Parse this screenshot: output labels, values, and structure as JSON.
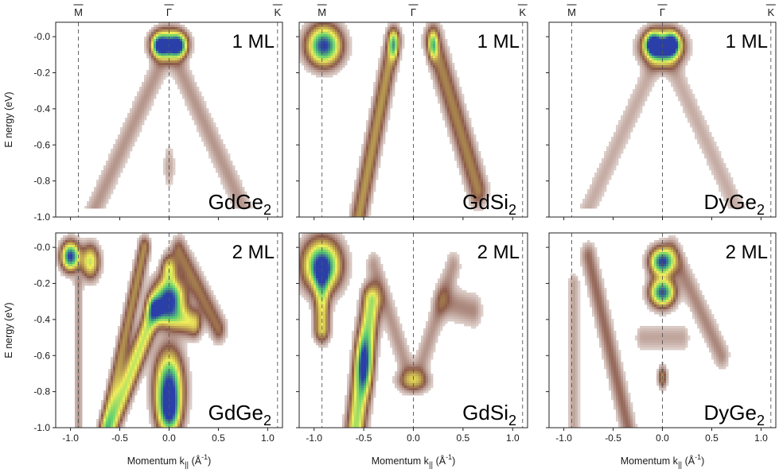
{
  "chart_data": {
    "type": "heatmap",
    "description_units": "ARPES intensity maps, energy (eV) vs momentum k|| (1/Angstrom)",
    "colormap": [
      "#ffffff",
      "#8b5a4a",
      "#f2ee5a",
      "#5ccf6e",
      "#2a3fa8"
    ],
    "xlim": [
      -1.15,
      1.15
    ],
    "ylim": [
      -1.0,
      0.08
    ],
    "xticks": [
      -1.0,
      -0.5,
      0.0,
      0.5,
      1.0
    ],
    "xtick_labels": [
      "-1.0",
      "-0.5",
      "0.0",
      "0.5",
      "1.0"
    ],
    "yticks": [
      0.0,
      -0.2,
      -0.4,
      -0.6,
      -0.8,
      -1.0
    ],
    "ytick_labels": [
      "-0.0",
      "-0.2",
      "-0.4",
      "-0.6",
      "-0.8",
      "-1.0"
    ],
    "ylabel": "E nergy  (eV)",
    "xlabel": "Momentum k",
    "xlabel_subscript": "||",
    "xlabel_unit": " (Å",
    "xlabel_unit_sup": "-1",
    "xlabel_unit_close": ")",
    "high_symmetry": [
      {
        "label": "M",
        "k": -0.92
      },
      {
        "label": "Γ",
        "k": 0.0
      },
      {
        "label": "K",
        "k": 1.1
      }
    ],
    "panels": [
      {
        "row": 0,
        "col": 0,
        "coverage": "1 ML",
        "material": "GdGe",
        "subscript": "2",
        "features": [
          {
            "kind": "cone",
            "apex_k": 0.0,
            "apex_e": -0.05,
            "slope": 1.2,
            "width": 0.07,
            "amp": 0.12,
            "e_min": -0.95
          },
          {
            "kind": "blob",
            "k": 0.0,
            "e": -0.04,
            "sk": 0.1,
            "se": 0.05,
            "amp": 0.9
          },
          {
            "kind": "blob",
            "k": -0.1,
            "e": -0.05,
            "sk": 0.05,
            "se": 0.04,
            "amp": 0.7
          },
          {
            "kind": "blob",
            "k": 0.1,
            "e": -0.05,
            "sk": 0.05,
            "se": 0.04,
            "amp": 0.7
          },
          {
            "kind": "blob",
            "k": 0.0,
            "e": -0.72,
            "sk": 0.04,
            "se": 0.08,
            "amp": 0.1
          }
        ]
      },
      {
        "row": 0,
        "col": 1,
        "coverage": "1 ML",
        "material": "GdSi",
        "subscript": "2",
        "features": [
          {
            "kind": "blob",
            "k": -0.9,
            "e": -0.05,
            "sk": 0.11,
            "se": 0.07,
            "amp": 1.0
          },
          {
            "kind": "band",
            "k0": -0.2,
            "e0": -0.02,
            "k1": -0.55,
            "e1": -1.0,
            "width": 0.05,
            "amp": 0.32
          },
          {
            "kind": "band",
            "k0": 0.2,
            "e0": -0.02,
            "k1": 0.65,
            "e1": -0.85,
            "width": 0.06,
            "amp": 0.28
          },
          {
            "kind": "blob",
            "k": -0.2,
            "e": -0.05,
            "sk": 0.03,
            "se": 0.05,
            "amp": 0.5
          },
          {
            "kind": "blob",
            "k": 0.2,
            "e": -0.05,
            "sk": 0.03,
            "se": 0.05,
            "amp": 0.5
          }
        ]
      },
      {
        "row": 0,
        "col": 2,
        "coverage": "1 ML",
        "material": "DyGe",
        "subscript": "2",
        "features": [
          {
            "kind": "cone",
            "apex_k": 0.0,
            "apex_e": -0.05,
            "slope": 1.2,
            "width": 0.07,
            "amp": 0.09,
            "e_min": -0.95
          },
          {
            "kind": "blob",
            "k": 0.0,
            "e": -0.06,
            "sk": 0.12,
            "se": 0.06,
            "amp": 1.0
          },
          {
            "kind": "blob",
            "k": -0.1,
            "e": -0.04,
            "sk": 0.05,
            "se": 0.04,
            "amp": 0.8
          },
          {
            "kind": "blob",
            "k": 0.1,
            "e": -0.04,
            "sk": 0.05,
            "se": 0.04,
            "amp": 0.8
          }
        ]
      },
      {
        "row": 1,
        "col": 0,
        "coverage": "2 ML",
        "material": "GdGe",
        "subscript": "2",
        "features": [
          {
            "kind": "blob",
            "k": -1.0,
            "e": -0.05,
            "sk": 0.06,
            "se": 0.05,
            "amp": 1.0
          },
          {
            "kind": "blob",
            "k": -0.8,
            "e": -0.08,
            "sk": 0.06,
            "se": 0.06,
            "amp": 0.55
          },
          {
            "kind": "blob",
            "k": 0.0,
            "e": -0.28,
            "sk": 0.1,
            "se": 0.07,
            "amp": 1.0
          },
          {
            "kind": "blob",
            "k": 0.0,
            "e": -0.78,
            "sk": 0.09,
            "se": 0.13,
            "amp": 1.0
          },
          {
            "kind": "blob",
            "k": 0.0,
            "e": -0.92,
            "sk": 0.07,
            "se": 0.08,
            "amp": 0.6
          },
          {
            "kind": "blob",
            "k": 0.0,
            "e": -0.12,
            "sk": 0.05,
            "se": 0.05,
            "amp": 0.45
          },
          {
            "kind": "band",
            "k0": -0.15,
            "e0": -0.35,
            "k1": -0.6,
            "e1": -1.0,
            "width": 0.05,
            "amp": 0.55
          },
          {
            "kind": "band",
            "k0": -0.15,
            "e0": -0.35,
            "k1": 0.25,
            "e1": -0.42,
            "width": 0.05,
            "amp": 0.45
          },
          {
            "kind": "band",
            "k0": -0.25,
            "e0": 0.0,
            "k1": -0.65,
            "e1": -1.0,
            "width": 0.04,
            "amp": 0.3
          },
          {
            "kind": "band",
            "k0": 0.1,
            "e0": -0.02,
            "k1": 0.5,
            "e1": -0.45,
            "width": 0.05,
            "amp": 0.25
          },
          {
            "kind": "band",
            "k0": -0.92,
            "e0": -0.2,
            "k1": -0.92,
            "e1": -1.0,
            "width": 0.03,
            "amp": 0.12
          }
        ]
      },
      {
        "row": 1,
        "col": 1,
        "coverage": "2 ML",
        "material": "GdSi",
        "subscript": "2",
        "features": [
          {
            "kind": "blob",
            "k": -0.92,
            "e": -0.1,
            "sk": 0.12,
            "se": 0.09,
            "amp": 1.0
          },
          {
            "kind": "band",
            "k0": -0.92,
            "e0": -0.15,
            "k1": -0.92,
            "e1": -0.45,
            "width": 0.05,
            "amp": 0.45
          },
          {
            "kind": "band",
            "k0": -0.42,
            "e0": -0.3,
            "k1": -0.58,
            "e1": -1.0,
            "width": 0.06,
            "amp": 0.6
          },
          {
            "kind": "blob",
            "k": -0.5,
            "e": -0.65,
            "sk": 0.05,
            "se": 0.1,
            "amp": 0.55
          },
          {
            "kind": "blob",
            "k": 0.0,
            "e": -0.74,
            "sk": 0.1,
            "se": 0.04,
            "amp": 0.32
          },
          {
            "kind": "band",
            "k0": -0.4,
            "e0": -0.1,
            "k1": -0.05,
            "e1": -0.7,
            "width": 0.05,
            "amp": 0.12
          },
          {
            "kind": "band",
            "k0": 0.4,
            "e0": -0.1,
            "k1": 0.05,
            "e1": -0.7,
            "width": 0.05,
            "amp": 0.12
          },
          {
            "kind": "band",
            "k0": 0.3,
            "e0": -0.3,
            "k1": 0.6,
            "e1": -0.35,
            "width": 0.06,
            "amp": 0.14
          }
        ]
      },
      {
        "row": 1,
        "col": 2,
        "coverage": "2 ML",
        "material": "DyGe",
        "subscript": "2",
        "features": [
          {
            "kind": "blob",
            "k": 0.0,
            "e": -0.08,
            "sk": 0.08,
            "se": 0.05,
            "amp": 1.0
          },
          {
            "kind": "blob",
            "k": 0.0,
            "e": -0.25,
            "sk": 0.08,
            "se": 0.05,
            "amp": 0.95
          },
          {
            "kind": "blob",
            "k": 0.0,
            "e": -0.72,
            "sk": 0.03,
            "se": 0.04,
            "amp": 0.3
          },
          {
            "kind": "band",
            "k0": -0.75,
            "e0": -0.05,
            "k1": -0.35,
            "e1": -1.0,
            "width": 0.05,
            "amp": 0.18
          },
          {
            "kind": "band",
            "k0": -0.9,
            "e0": -0.2,
            "k1": -0.9,
            "e1": -1.0,
            "width": 0.04,
            "amp": 0.1
          },
          {
            "kind": "band",
            "k0": -0.2,
            "e0": -0.5,
            "k1": 0.2,
            "e1": -0.5,
            "width": 0.05,
            "amp": 0.1
          },
          {
            "kind": "band",
            "k0": 0.1,
            "e0": -0.02,
            "k1": 0.6,
            "e1": -0.6,
            "width": 0.05,
            "amp": 0.14
          }
        ]
      }
    ]
  }
}
